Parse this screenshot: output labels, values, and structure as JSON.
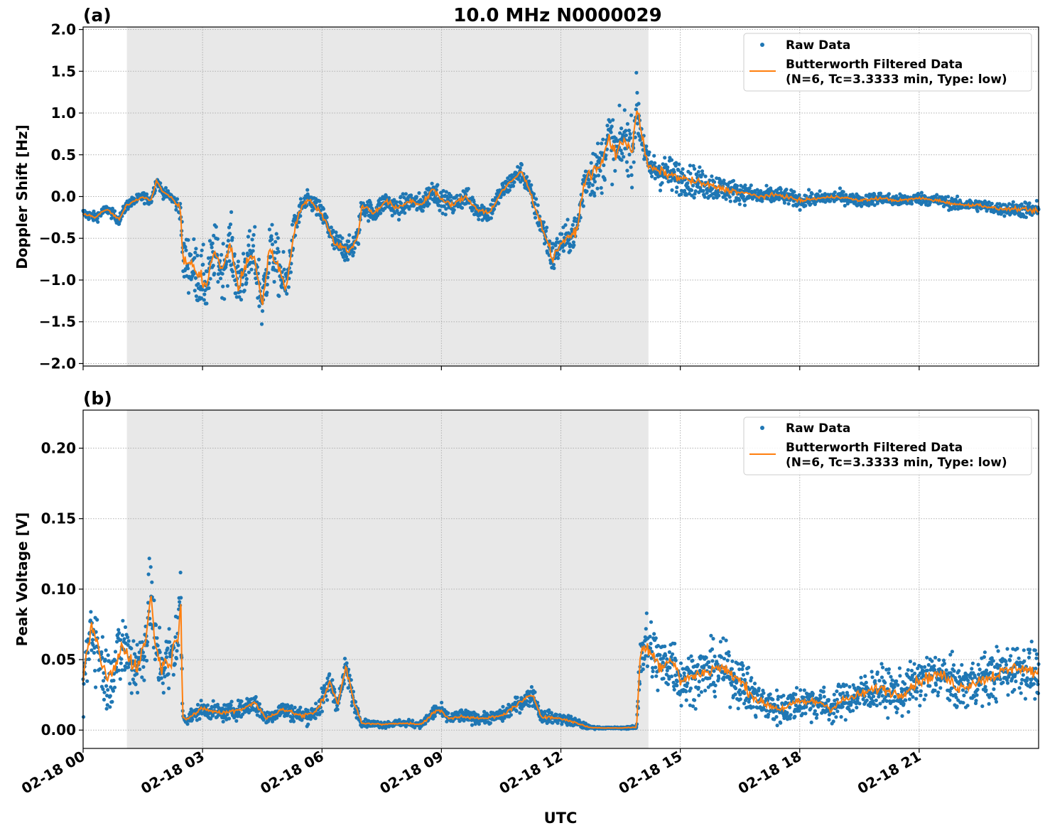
{
  "figure": {
    "title": "10.0 MHz N0000029",
    "xlabel": "UTC",
    "x_ticks": [
      "02-18 00",
      "02-18 03",
      "02-18 06",
      "02-18 09",
      "02-18 12",
      "02-18 15",
      "02-18 18",
      "02-18 21"
    ],
    "shaded_interval_hours": [
      1.1,
      14.2
    ],
    "colors": {
      "raw": "#1f77b4",
      "filtered": "#ff7f0e",
      "shade": "#e8e8e8",
      "grid": "#b0b0b0"
    }
  },
  "legend": {
    "raw": "Raw Data",
    "filtered_line1": "Butterworth Filtered Data",
    "filtered_line2": "(N=6, Tc=3.3333 min, Type: low)"
  },
  "chart_data": [
    {
      "type": "scatter",
      "panel_label": "(a)",
      "ylabel": "Doppler Shift [Hz]",
      "x_unit": "hours UTC on 02-18",
      "xlim": [
        0,
        24
      ],
      "ylim": [
        -2.03,
        2.03
      ],
      "y_ticks": [
        -2.0,
        -1.5,
        -1.0,
        -0.5,
        0.0,
        0.5,
        1.0,
        1.5,
        2.0
      ],
      "y_tick_labels": [
        "−2.0",
        "−1.5",
        "−1.0",
        "−0.5",
        "0.0",
        "0.5",
        "1.0",
        "1.5",
        "2.0"
      ],
      "series": [
        {
          "name": "Butterworth Filtered Data",
          "x": [
            0,
            0.3,
            0.6,
            0.9,
            1.1,
            1.3,
            1.5,
            1.7,
            1.85,
            2.0,
            2.2,
            2.45,
            2.5,
            2.7,
            2.9,
            3.1,
            3.3,
            3.5,
            3.7,
            3.9,
            4.1,
            4.3,
            4.5,
            4.7,
            4.9,
            5.1,
            5.3,
            5.5,
            5.7,
            5.9,
            6.1,
            6.3,
            6.5,
            6.7,
            6.9,
            7.0,
            7.3,
            7.6,
            7.9,
            8.2,
            8.5,
            8.8,
            9.0,
            9.3,
            9.6,
            9.9,
            10.2,
            10.5,
            10.8,
            11.0,
            11.2,
            11.4,
            11.6,
            11.8,
            12.0,
            12.2,
            12.4,
            12.6,
            12.8,
            13.0,
            13.2,
            13.4,
            13.6,
            13.8,
            13.9,
            14.0,
            14.2,
            14.5,
            14.8,
            15.2,
            15.6,
            16.0,
            16.5,
            17.0,
            17.5,
            18.0,
            18.5,
            19.0,
            19.5,
            20.0,
            20.5,
            21.0,
            21.5,
            22.0,
            22.5,
            23.0,
            23.5,
            24.0
          ],
          "y": [
            -0.2,
            -0.25,
            -0.15,
            -0.28,
            -0.1,
            -0.05,
            0.0,
            -0.05,
            0.2,
            0.05,
            0.0,
            -0.15,
            -0.75,
            -0.8,
            -0.95,
            -1.05,
            -0.65,
            -0.9,
            -0.55,
            -1.1,
            -0.8,
            -0.7,
            -1.3,
            -0.6,
            -0.85,
            -1.1,
            -0.4,
            -0.1,
            -0.05,
            -0.15,
            -0.3,
            -0.55,
            -0.6,
            -0.65,
            -0.5,
            -0.1,
            -0.2,
            -0.05,
            -0.15,
            -0.05,
            -0.1,
            0.1,
            -0.05,
            -0.1,
            0.0,
            -0.15,
            -0.2,
            0.05,
            0.2,
            0.3,
            0.1,
            -0.2,
            -0.45,
            -0.75,
            -0.55,
            -0.5,
            -0.4,
            0.2,
            0.3,
            0.35,
            0.7,
            0.5,
            0.7,
            0.55,
            1.1,
            0.8,
            0.35,
            0.3,
            0.25,
            0.2,
            0.15,
            0.1,
            0.05,
            0.0,
            0.02,
            -0.05,
            -0.02,
            0.0,
            -0.05,
            -0.02,
            -0.05,
            -0.02,
            -0.05,
            -0.1,
            -0.1,
            -0.15,
            -0.15,
            -0.18
          ]
        },
        {
          "name": "Raw Data",
          "spread_around_filtered": [
            0.1,
            0.1,
            0.1,
            0.1,
            0.1,
            0.1,
            0.1,
            0.1,
            0.1,
            0.1,
            0.1,
            0.2,
            0.5,
            0.6,
            0.6,
            0.6,
            0.55,
            0.55,
            0.55,
            0.6,
            0.55,
            0.55,
            0.6,
            0.55,
            0.55,
            0.55,
            0.3,
            0.2,
            0.2,
            0.2,
            0.25,
            0.25,
            0.25,
            0.25,
            0.25,
            0.2,
            0.2,
            0.2,
            0.2,
            0.2,
            0.2,
            0.25,
            0.2,
            0.2,
            0.2,
            0.2,
            0.2,
            0.2,
            0.2,
            0.2,
            0.2,
            0.25,
            0.3,
            0.35,
            0.3,
            0.3,
            0.35,
            0.45,
            0.5,
            0.55,
            0.6,
            0.6,
            0.6,
            0.6,
            0.55,
            0.45,
            0.3,
            0.35,
            0.35,
            0.3,
            0.3,
            0.25,
            0.2,
            0.18,
            0.15,
            0.15,
            0.13,
            0.12,
            0.12,
            0.12,
            0.12,
            0.12,
            0.12,
            0.12,
            0.12,
            0.12,
            0.15,
            0.2
          ]
        }
      ]
    },
    {
      "type": "scatter",
      "panel_label": "(b)",
      "ylabel": "Peak Voltage [V]",
      "x_unit": "hours UTC on 02-18",
      "xlim": [
        0,
        24
      ],
      "ylim": [
        -0.013,
        0.227
      ],
      "y_ticks": [
        0.0,
        0.05,
        0.1,
        0.15,
        0.2
      ],
      "y_tick_labels": [
        "0.00",
        "0.05",
        "0.10",
        "0.15",
        "0.20"
      ],
      "series": [
        {
          "name": "Butterworth Filtered Data",
          "x": [
            0,
            0.2,
            0.4,
            0.6,
            0.8,
            1.0,
            1.2,
            1.4,
            1.6,
            1.7,
            1.8,
            2.0,
            2.2,
            2.4,
            2.45,
            2.5,
            2.6,
            3.0,
            3.5,
            4.0,
            4.3,
            4.6,
            5.0,
            5.5,
            5.8,
            6.0,
            6.2,
            6.4,
            6.6,
            6.8,
            7.0,
            7.5,
            8.0,
            8.5,
            8.9,
            9.2,
            9.5,
            10.0,
            10.5,
            11.0,
            11.3,
            11.5,
            12.0,
            12.3,
            12.6,
            12.7,
            13.0,
            13.5,
            13.9,
            14.0,
            14.2,
            14.5,
            14.8,
            15.0,
            15.5,
            16.0,
            16.5,
            16.8,
            17.0,
            17.5,
            18.0,
            18.5,
            18.8,
            19.0,
            19.5,
            20.0,
            20.5,
            21.0,
            21.5,
            22.0,
            22.5,
            23.0,
            23.5,
            24.0
          ],
          "y": [
            0.03,
            0.075,
            0.055,
            0.035,
            0.045,
            0.06,
            0.05,
            0.045,
            0.07,
            0.1,
            0.06,
            0.045,
            0.05,
            0.07,
            0.1,
            0.01,
            0.008,
            0.015,
            0.012,
            0.015,
            0.02,
            0.008,
            0.015,
            0.01,
            0.012,
            0.02,
            0.035,
            0.018,
            0.045,
            0.02,
            0.005,
            0.004,
            0.005,
            0.004,
            0.015,
            0.008,
            0.01,
            0.008,
            0.01,
            0.02,
            0.025,
            0.01,
            0.008,
            0.006,
            0.003,
            0.002,
            0.0015,
            0.0015,
            0.002,
            0.055,
            0.06,
            0.045,
            0.05,
            0.035,
            0.04,
            0.045,
            0.035,
            0.025,
            0.02,
            0.015,
            0.02,
            0.02,
            0.015,
            0.02,
            0.025,
            0.03,
            0.025,
            0.035,
            0.04,
            0.03,
            0.035,
            0.04,
            0.045,
            0.04
          ]
        },
        {
          "name": "Raw Data",
          "spread_around_filtered": [
            0.045,
            0.045,
            0.04,
            0.04,
            0.04,
            0.045,
            0.04,
            0.045,
            0.045,
            0.05,
            0.045,
            0.04,
            0.045,
            0.045,
            0.05,
            0.008,
            0.008,
            0.01,
            0.01,
            0.01,
            0.012,
            0.008,
            0.01,
            0.01,
            0.01,
            0.015,
            0.015,
            0.012,
            0.015,
            0.012,
            0.004,
            0.004,
            0.004,
            0.004,
            0.01,
            0.006,
            0.008,
            0.006,
            0.008,
            0.01,
            0.012,
            0.008,
            0.006,
            0.006,
            0.004,
            0.002,
            0.001,
            0.001,
            0.002,
            0.04,
            0.04,
            0.035,
            0.035,
            0.03,
            0.03,
            0.03,
            0.03,
            0.025,
            0.02,
            0.02,
            0.02,
            0.02,
            0.018,
            0.02,
            0.022,
            0.025,
            0.025,
            0.028,
            0.028,
            0.028,
            0.028,
            0.03,
            0.03,
            0.03
          ]
        }
      ]
    }
  ]
}
